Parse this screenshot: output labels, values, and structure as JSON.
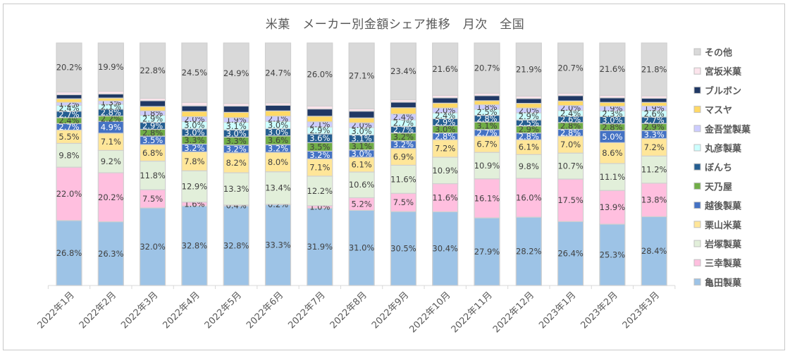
{
  "chart_data": {
    "type": "bar",
    "stacked": "percent",
    "title": "米菓　メーカー別金額シェア推移　月次　全国",
    "xlabel": "",
    "ylabel": "",
    "ylim": [
      0,
      100
    ],
    "legend_position": "right",
    "categories": [
      "2022年1月",
      "2022年2月",
      "2022年3月",
      "2022年4月",
      "2022年5月",
      "2022年6月",
      "2022年7月",
      "2022年8月",
      "2022年9月",
      "2022年10月",
      "2022年11月",
      "2022年12月",
      "2023年1月",
      "2023年2月",
      "2023年3月"
    ],
    "series": [
      {
        "name": "亀田製菓",
        "color": "#9dc3e6",
        "label_color": "#404040",
        "labeled": true,
        "values": [
          26.8,
          26.3,
          32.0,
          32.8,
          32.8,
          33.3,
          31.9,
          31.0,
          30.5,
          30.4,
          27.9,
          28.2,
          26.4,
          25.3,
          28.4
        ]
      },
      {
        "name": "三幸製菓",
        "color": "#ffbfdf",
        "label_color": "#404040",
        "labeled": true,
        "values": [
          22.0,
          20.2,
          7.5,
          1.6,
          0.4,
          0.2,
          1.0,
          5.2,
          7.5,
          11.6,
          16.1,
          16.0,
          17.5,
          13.9,
          13.8
        ]
      },
      {
        "name": "岩塚製菓",
        "color": "#e2efda",
        "label_color": "#404040",
        "labeled": true,
        "values": [
          9.8,
          9.2,
          11.8,
          12.9,
          13.3,
          13.4,
          12.2,
          10.6,
          11.6,
          10.9,
          10.9,
          9.8,
          10.7,
          11.1,
          11.2
        ]
      },
      {
        "name": "栗山米菓",
        "color": "#ffe699",
        "label_color": "#404040",
        "labeled": true,
        "values": [
          5.5,
          7.1,
          6.8,
          7.8,
          8.2,
          8.0,
          7.1,
          6.1,
          6.9,
          7.2,
          6.7,
          6.1,
          7.0,
          8.6,
          7.2
        ]
      },
      {
        "name": "越後製菓",
        "color": "#4472c4",
        "label_color": "#ffffff",
        "labeled": true,
        "values": [
          2.7,
          4.9,
          3.5,
          3.2,
          3.2,
          3.2,
          3.2,
          3.0,
          3.2,
          2.8,
          2.7,
          2.8,
          2.8,
          5.0,
          3.3
        ]
      },
      {
        "name": "天乃屋",
        "color": "#70ad47",
        "label_color": "#404040",
        "labeled": true,
        "values": [
          2.4,
          2.2,
          2.8,
          3.3,
          3.3,
          3.6,
          3.5,
          3.1,
          3.2,
          3.0,
          3.1,
          2.9,
          2.8,
          2.8,
          2.9
        ]
      },
      {
        "name": "ぼんち",
        "color": "#255e91",
        "label_color": "#ffffff",
        "labeled": true,
        "values": [
          2.7,
          2.8,
          2.9,
          3.0,
          3.0,
          3.0,
          3.6,
          3.1,
          2.7,
          2.9,
          2.8,
          2.5,
          2.6,
          3.0,
          2.7
        ]
      },
      {
        "name": "丸彦製菓",
        "color": "#ccffff",
        "label_color": "#404040",
        "labeled": true,
        "values": [
          2.4,
          2.1,
          2.9,
          3.0,
          3.1,
          3.0,
          2.9,
          3.0,
          2.7,
          2.4,
          2.5,
          2.9,
          2.4,
          2.3,
          2.6
        ]
      },
      {
        "name": "金吾堂製菓",
        "color": "#ccccff",
        "label_color": "#404040",
        "labeled": true,
        "values": [
          1.2,
          1.3,
          1.8,
          2.0,
          1.9,
          2.1,
          2.1,
          2.0,
          2.4,
          2.0,
          1.8,
          2.0,
          2.0,
          1.9,
          1.9
        ]
      },
      {
        "name": "マスヤ",
        "color": "#ffd966",
        "label_color": "#404040",
        "labeled": false,
        "values": [
          1.5,
          1.2,
          1.8,
          2.2,
          2.2,
          2.2,
          2.3,
          2.0,
          2.6,
          2.0,
          1.7,
          1.9,
          1.9,
          1.6,
          1.5
        ]
      },
      {
        "name": "ブルボン",
        "color": "#203864",
        "label_color": "#ffffff",
        "labeled": false,
        "values": [
          1.7,
          1.7,
          2.4,
          2.3,
          2.6,
          2.3,
          3.0,
          2.8,
          2.3,
          2.2,
          2.1,
          2.0,
          2.2,
          1.9,
          1.7
        ]
      },
      {
        "name": "宮坂米菓",
        "color": "#fce4ec",
        "label_color": "#404040",
        "labeled": false,
        "values": [
          1.1,
          1.1,
          1.0,
          1.4,
          1.1,
          1.0,
          1.2,
          1.0,
          1.0,
          1.0,
          1.0,
          1.0,
          1.0,
          1.0,
          1.0
        ]
      },
      {
        "name": "その他",
        "color": "#d9d9d9",
        "label_color": "#404040",
        "labeled": true,
        "values": [
          20.2,
          19.9,
          22.8,
          24.5,
          24.9,
          24.7,
          26.0,
          27.1,
          23.4,
          21.6,
          20.7,
          21.9,
          20.7,
          21.6,
          21.8
        ]
      }
    ]
  }
}
